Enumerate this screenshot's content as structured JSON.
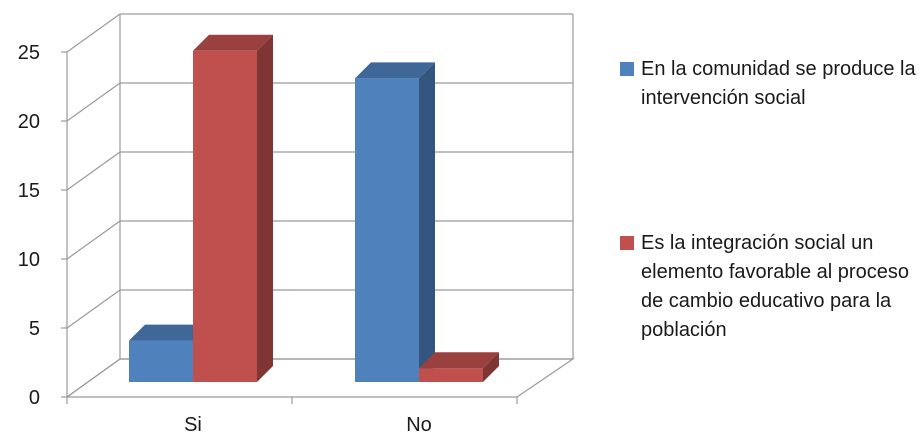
{
  "chart_data": {
    "type": "bar",
    "categories": [
      "Si",
      "No"
    ],
    "series": [
      {
        "name": "En la comunidad se produce la intervención social",
        "values": [
          3,
          22
        ],
        "color": "#4f81bd"
      },
      {
        "name": "Es la integración social un elemento favorable al proceso de cambio educativo para la población",
        "values": [
          24,
          1
        ],
        "color": "#c0504d"
      }
    ],
    "yticks": [
      "0",
      "5",
      "10",
      "15",
      "20",
      "25"
    ],
    "ylim": [
      0,
      25
    ],
    "grid": true,
    "legend": "right",
    "style": "3d-column"
  }
}
